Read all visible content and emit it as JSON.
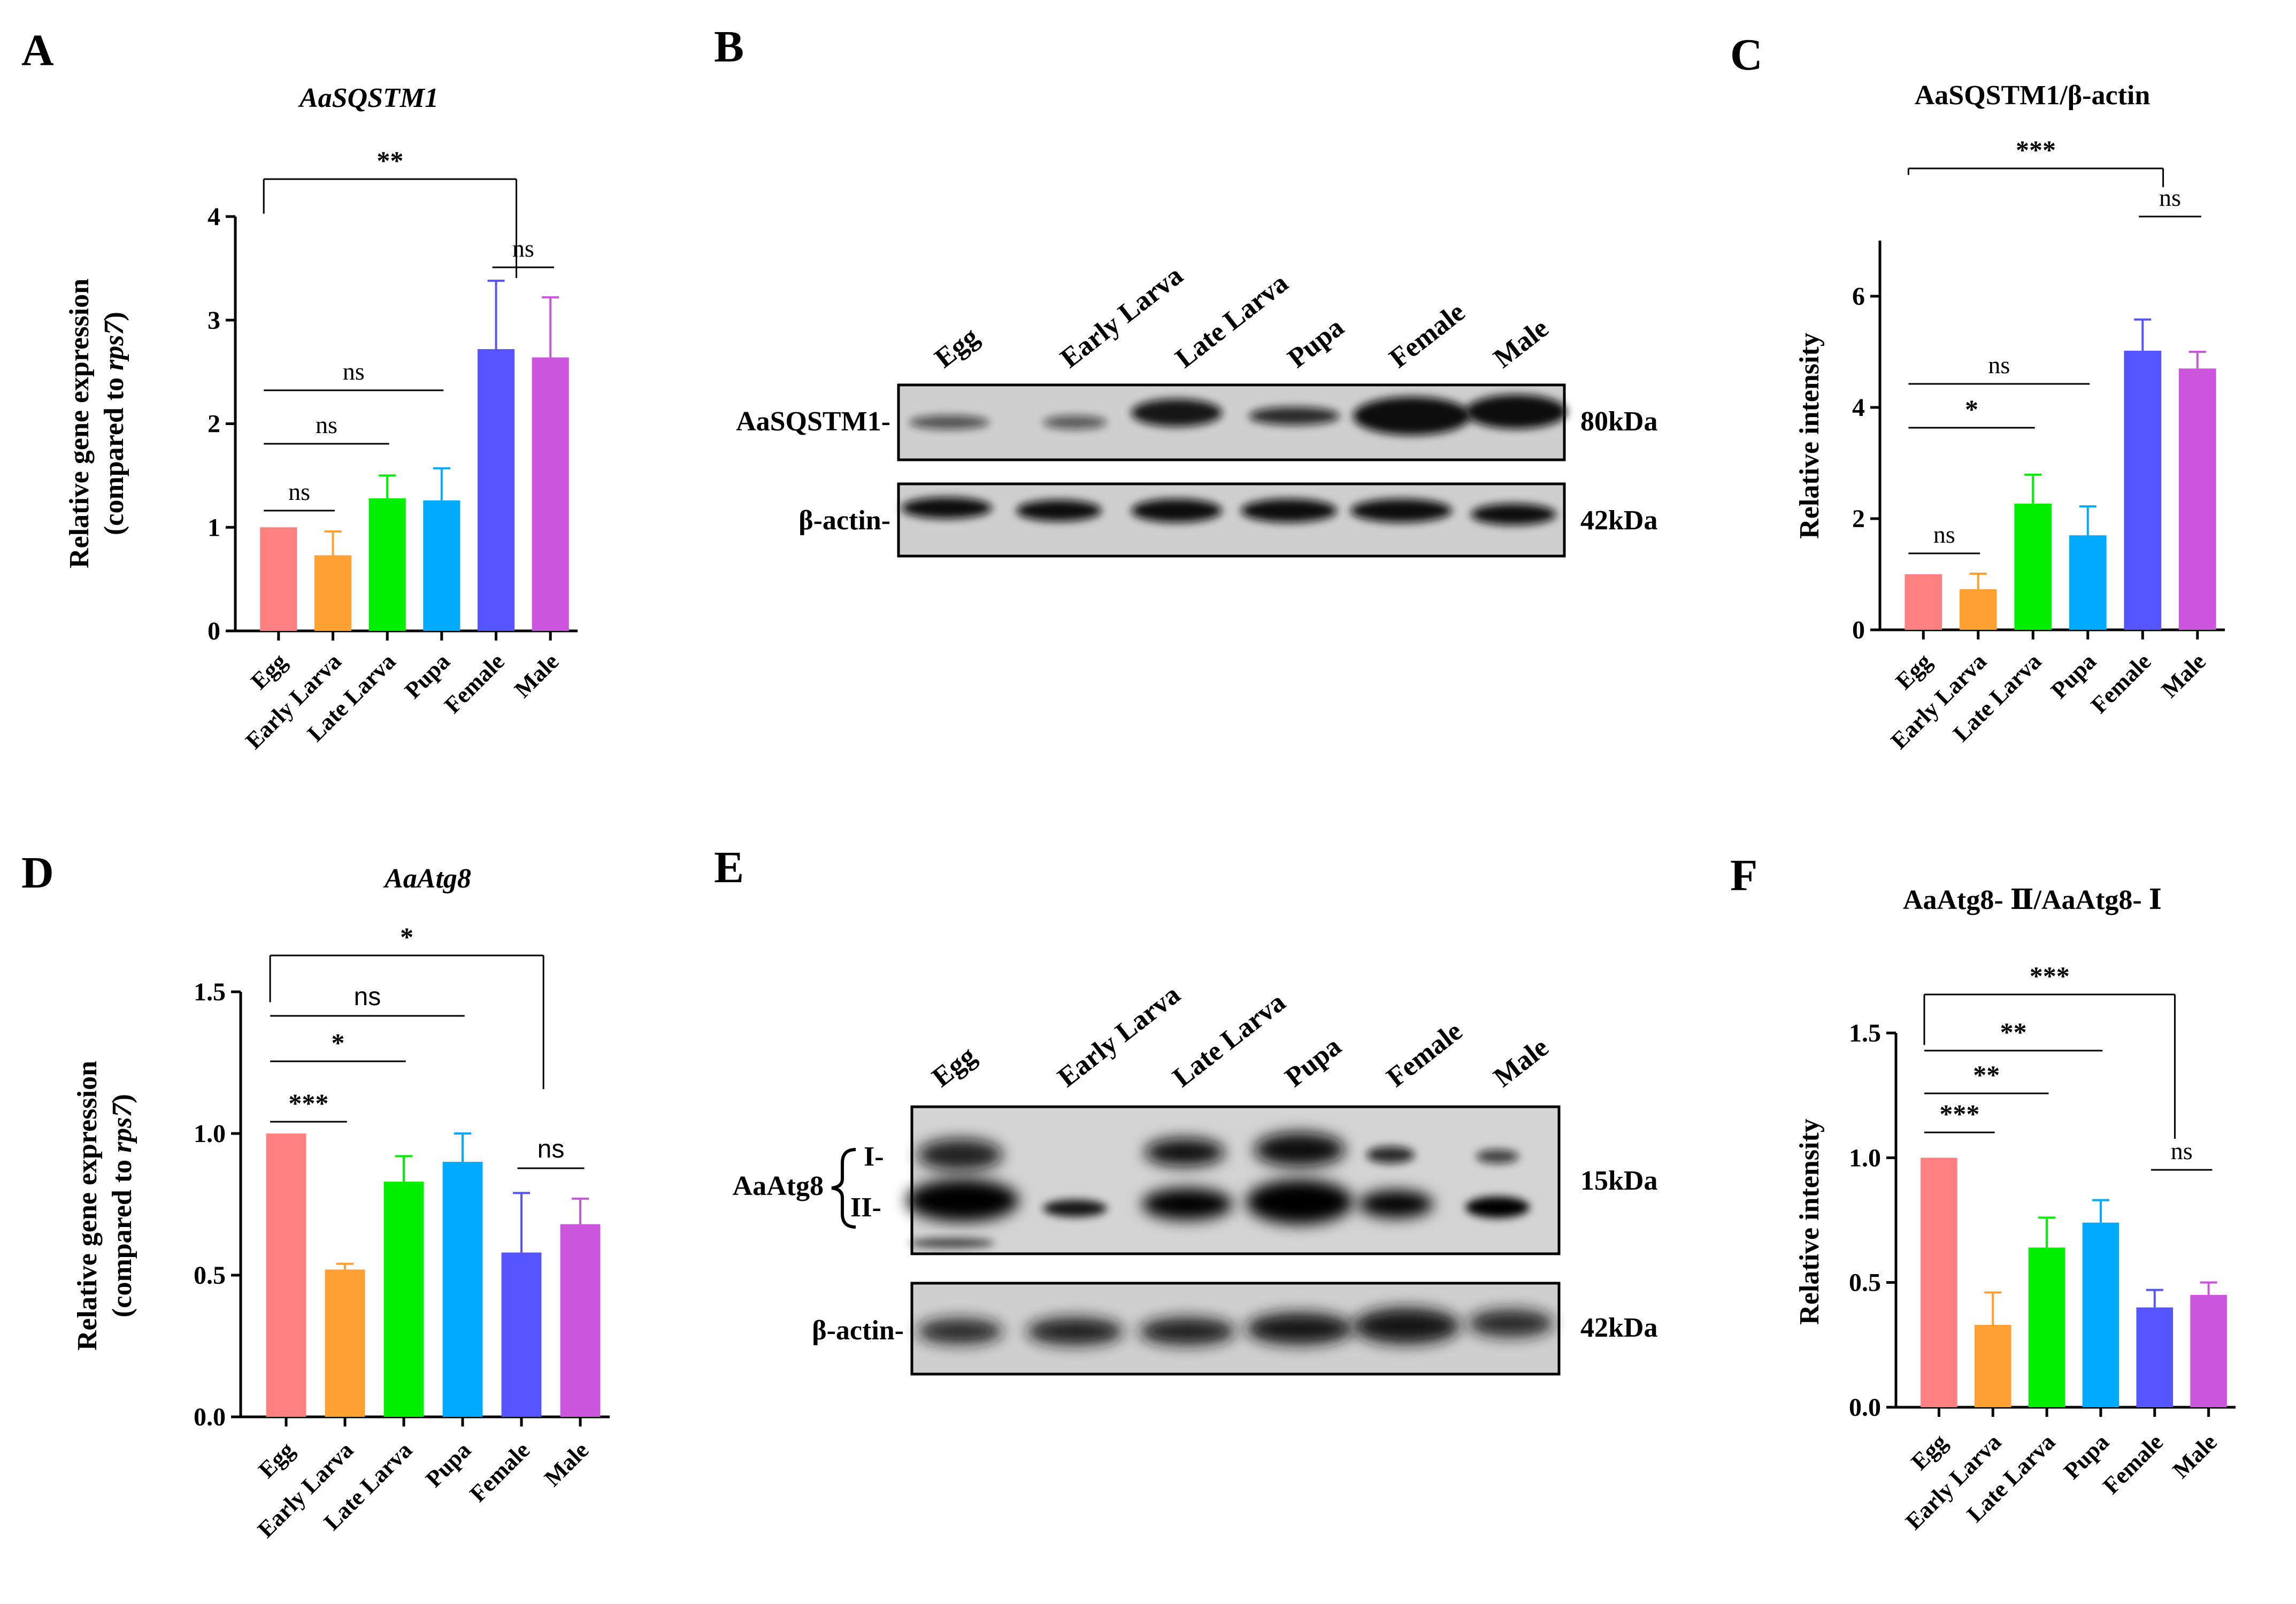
{
  "chart_data": [
    {
      "panel": "A",
      "type": "bar",
      "title": "AaSQSTM1",
      "ylabel": "Relative gene expression",
      "ylabel2": "(compared to rps7)",
      "ylim": [
        0,
        4
      ],
      "yticks": [
        "0",
        "1",
        "2",
        "3",
        "4"
      ],
      "categories": [
        "Egg",
        "Early Larva",
        "Late Larva",
        "Pupa",
        "Female",
        "Male"
      ],
      "values": [
        1.0,
        0.73,
        1.28,
        1.26,
        2.72,
        2.64
      ],
      "errors": [
        0,
        0.23,
        0.22,
        0.31,
        0.66,
        0.58
      ],
      "colors": [
        "#ff8080",
        "#ffa033",
        "#00ee00",
        "#00aaff",
        "#5555ff",
        "#cc55dd"
      ],
      "significance": [
        {
          "label": "ns",
          "from": 0,
          "to": 1
        },
        {
          "label": "ns",
          "from": 0,
          "to": 2
        },
        {
          "label": "ns",
          "from": 0,
          "to": 3
        },
        {
          "label": "ns",
          "from": 4,
          "to": 5
        },
        {
          "label": "**",
          "from": 0,
          "to": 4
        }
      ]
    },
    {
      "panel": "C",
      "type": "bar",
      "title": "AaSQSTM1/β-actin",
      "ylabel": "Relative intensity",
      "ylim": [
        0,
        7
      ],
      "yticks": [
        "0",
        "2",
        "4",
        "6"
      ],
      "categories": [
        "Egg",
        "Early Larva",
        "Late Larva",
        "Pupa",
        "Female",
        "Male"
      ],
      "values": [
        1.0,
        0.73,
        2.27,
        1.7,
        5.02,
        4.7
      ],
      "errors": [
        0,
        0.28,
        0.52,
        0.52,
        0.56,
        0.3
      ],
      "colors": [
        "#ff8080",
        "#ffa033",
        "#00ee00",
        "#00aaff",
        "#5555ff",
        "#cc55dd"
      ],
      "significance": [
        {
          "label": "ns",
          "from": 0,
          "to": 1
        },
        {
          "label": "*",
          "from": 0,
          "to": 2
        },
        {
          "label": "ns",
          "from": 0,
          "to": 3
        },
        {
          "label": "ns",
          "from": 4,
          "to": 5
        },
        {
          "label": "***",
          "from": 0,
          "to": 4
        }
      ]
    },
    {
      "panel": "D",
      "type": "bar",
      "title": "AaAtg8",
      "ylabel": "Relative gene expression",
      "ylabel2": "(compared to rps7)",
      "ylim": [
        0,
        1.5
      ],
      "yticks": [
        "0.0",
        "0.5",
        "1.0",
        "1.5"
      ],
      "categories": [
        "Egg",
        "Early Larva",
        "Late Larva",
        "Pupa",
        "Female",
        "Male"
      ],
      "values": [
        1.0,
        0.52,
        0.83,
        0.9,
        0.58,
        0.68
      ],
      "errors": [
        0,
        0.02,
        0.09,
        0.1,
        0.21,
        0.09
      ],
      "colors": [
        "#ff8080",
        "#ffa033",
        "#00ee00",
        "#00aaff",
        "#5555ff",
        "#cc55dd"
      ],
      "significance": [
        {
          "label": "***",
          "from": 0,
          "to": 1
        },
        {
          "label": "*",
          "from": 0,
          "to": 2
        },
        {
          "label": "ns",
          "from": 0,
          "to": 3
        },
        {
          "label": "ns",
          "from": 4,
          "to": 5
        },
        {
          "label": "*",
          "from": 0,
          "to": 4
        }
      ]
    },
    {
      "panel": "F",
      "type": "bar",
      "title": "AaAtg8- Ⅱ/AaAtg8- Ⅰ",
      "ylabel": "Relative intensity",
      "ylim": [
        0,
        1.5
      ],
      "yticks": [
        "0.0",
        "0.5",
        "1.0",
        "1.5"
      ],
      "categories": [
        "Egg",
        "Early Larva",
        "Late Larva",
        "Pupa",
        "Female",
        "Male"
      ],
      "values": [
        1.0,
        0.33,
        0.64,
        0.74,
        0.4,
        0.45
      ],
      "errors": [
        0,
        0.13,
        0.12,
        0.09,
        0.07,
        0.05
      ],
      "colors": [
        "#ff8080",
        "#ffa033",
        "#00ee00",
        "#00aaff",
        "#5555ff",
        "#cc55dd"
      ],
      "significance": [
        {
          "label": "***",
          "from": 0,
          "to": 1
        },
        {
          "label": "**",
          "from": 0,
          "to": 2
        },
        {
          "label": "**",
          "from": 0,
          "to": 3
        },
        {
          "label": "ns",
          "from": 4,
          "to": 5
        },
        {
          "label": "***",
          "from": 0,
          "to": 4
        }
      ]
    }
  ],
  "panels": {
    "a": "A",
    "b": "B",
    "c": "C",
    "d": "D",
    "e": "E",
    "f": "F"
  },
  "blotB": {
    "lanes": [
      "Egg",
      "Early Larva",
      "Late Larva",
      "Pupa",
      "Female",
      "Male"
    ],
    "protein": "AaSQSTM1-",
    "protein_kda": "80kDa",
    "control": "β-actin-",
    "control_kda": "42kDa"
  },
  "blotE": {
    "lanes": [
      "Egg",
      "Early Larva",
      "Late Larva",
      "Pupa",
      "Female",
      "Male"
    ],
    "protein": "AaAtg8",
    "band_upper": "I-",
    "band_lower": "II-",
    "protein_kda": "15kDa",
    "control": "β-actin-",
    "control_kda": "42kDa"
  }
}
